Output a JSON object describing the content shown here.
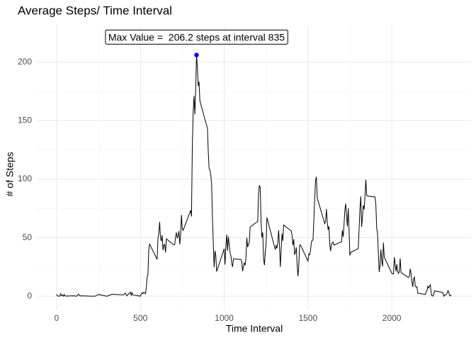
{
  "chart_data": {
    "type": "line",
    "title": "Average Steps/ Time Interval",
    "x_label": "Time Interval",
    "y_label": "# of Steps",
    "xlim": [
      -117.75,
      2472.75
    ],
    "ylim": [
      -12,
      232
    ],
    "xticks": [
      0,
      500,
      1000,
      1500,
      2000
    ],
    "yticks": [
      0,
      50,
      100,
      150,
      200
    ],
    "grid": true,
    "annotation": {
      "text": "Max Value =  206.2 steps at interval 835",
      "x": 835,
      "y": 206.2,
      "color": "#0000ff"
    },
    "x": [
      0,
      5,
      10,
      15,
      20,
      25,
      30,
      35,
      40,
      45,
      50,
      55,
      100,
      110,
      120,
      130,
      140,
      150,
      200,
      230,
      250,
      300,
      330,
      400,
      410,
      420,
      430,
      440,
      445,
      450,
      455,
      500,
      505,
      510,
      515,
      520,
      525,
      530,
      535,
      540,
      545,
      550,
      555,
      600,
      605,
      610,
      615,
      620,
      625,
      630,
      635,
      640,
      645,
      650,
      655,
      700,
      705,
      710,
      715,
      720,
      725,
      730,
      735,
      740,
      745,
      750,
      755,
      800,
      805,
      810,
      815,
      820,
      825,
      830,
      835,
      840,
      845,
      850,
      855,
      900,
      905,
      910,
      915,
      920,
      925,
      930,
      935,
      940,
      945,
      950,
      955,
      1000,
      1005,
      1010,
      1015,
      1020,
      1025,
      1030,
      1035,
      1040,
      1045,
      1050,
      1055,
      1100,
      1105,
      1110,
      1115,
      1120,
      1125,
      1130,
      1135,
      1140,
      1145,
      1150,
      1155,
      1200,
      1205,
      1210,
      1215,
      1220,
      1225,
      1230,
      1235,
      1240,
      1245,
      1250,
      1255,
      1300,
      1305,
      1310,
      1315,
      1320,
      1325,
      1330,
      1335,
      1340,
      1345,
      1350,
      1355,
      1400,
      1405,
      1410,
      1415,
      1420,
      1425,
      1430,
      1435,
      1440,
      1445,
      1450,
      1455,
      1500,
      1505,
      1510,
      1515,
      1520,
      1525,
      1530,
      1535,
      1540,
      1545,
      1550,
      1555,
      1600,
      1605,
      1610,
      1615,
      1620,
      1625,
      1630,
      1635,
      1640,
      1645,
      1650,
      1655,
      1700,
      1705,
      1710,
      1715,
      1720,
      1725,
      1730,
      1735,
      1740,
      1745,
      1750,
      1755,
      1800,
      1805,
      1810,
      1815,
      1820,
      1825,
      1830,
      1835,
      1840,
      1845,
      1850,
      1855,
      1900,
      1905,
      1910,
      1915,
      1920,
      1925,
      1930,
      1935,
      1940,
      1945,
      1950,
      1955,
      2000,
      2005,
      2010,
      2015,
      2020,
      2025,
      2030,
      2035,
      2040,
      2045,
      2050,
      2055,
      2100,
      2105,
      2110,
      2115,
      2120,
      2125,
      2130,
      2135,
      2140,
      2145,
      2150,
      2155,
      2200,
      2205,
      2210,
      2215,
      2220,
      2225,
      2230,
      2235,
      2240,
      2245,
      2250,
      2255,
      2300,
      2305,
      2310,
      2315,
      2320,
      2325,
      2330,
      2335,
      2340,
      2345,
      2350,
      2355
    ],
    "series": [
      {
        "color": "#000000",
        "values": [
          1.7,
          0.3,
          0.1,
          0.2,
          0.1,
          2.1,
          0.5,
          0.9,
          0,
          1.5,
          0.3,
          0.1,
          0.3,
          0.2,
          0,
          1.8,
          0.2,
          0.3,
          0,
          0,
          1.5,
          0,
          1.6,
          1.2,
          2.6,
          0.3,
          2.1,
          3.5,
          0.8,
          3.1,
          1.1,
          0,
          1.6,
          3,
          2.2,
          3.3,
          3,
          2.1,
          6.1,
          16,
          18.3,
          39.5,
          44.5,
          31.5,
          49.3,
          53.8,
          63.5,
          50,
          47.1,
          52.2,
          39.3,
          44,
          44.2,
          37.4,
          49,
          43.8,
          44.4,
          50.5,
          54.5,
          49.9,
          51,
          55.7,
          44.3,
          52.3,
          69.5,
          57.8,
          56.2,
          73.4,
          68.2,
          129.4,
          157.5,
          171.2,
          155.4,
          177.3,
          206.2,
          195.9,
          179.6,
          183.4,
          167,
          143.5,
          124,
          109.1,
          108.1,
          103.7,
          96,
          66.2,
          45.2,
          24.8,
          38.8,
          35,
          21.1,
          40.6,
          27,
          42.4,
          52.7,
          38.9,
          50.8,
          44.3,
          37.4,
          34.7,
          28.3,
          25.1,
          31.9,
          31.4,
          29.7,
          21.3,
          25.5,
          28.4,
          26.5,
          33.4,
          50,
          42,
          44.6,
          46,
          59.2,
          63.9,
          87.5,
          94.8,
          92.8,
          63.4,
          50.2,
          54.5,
          32.4,
          26.5,
          37.7,
          45,
          67.3,
          42.3,
          39.9,
          43.3,
          41,
          46.2,
          56.4,
          42.8,
          25.1,
          40,
          53.5,
          47.3,
          60.8,
          55.8,
          52,
          43.6,
          48.7,
          35.5,
          37.5,
          41.8,
          27.5,
          17.1,
          26.2,
          43.6,
          43.8,
          30,
          36.1,
          35.5,
          38.8,
          46,
          47.8,
          48.1,
          65.3,
          82.9,
          98.7,
          102.1,
          84,
          62.1,
          64.1,
          74.5,
          63.2,
          56.9,
          59.8,
          43.9,
          38.6,
          44.7,
          45.5,
          46.2,
          43.7,
          46.6,
          56.3,
          50.7,
          61.2,
          73.4,
          79.1,
          68.9,
          59.7,
          75.1,
          56.5,
          34.8,
          37.5,
          40.7,
          58,
          74.7,
          85.3,
          59.3,
          67.8,
          77.7,
          74.2,
          85.3,
          99.5,
          86.6,
          85.6,
          84.9,
          77.8,
          58,
          53.4,
          36.3,
          20.7,
          27.4,
          40,
          30.2,
          25.5,
          45.7,
          33.5,
          19.6,
          19,
          19.3,
          33.3,
          26.8,
          21.2,
          27.3,
          21.3,
          19.5,
          21.3,
          32.3,
          20.2,
          15.9,
          17.2,
          23.5,
          19.2,
          12.5,
          8,
          14.7,
          16.3,
          8.7,
          7.8,
          8.1,
          2.6,
          1.5,
          3.7,
          4.8,
          8.5,
          7.1,
          8.7,
          9.8,
          2.2,
          0.3,
          0.1,
          1.6,
          4.6,
          3.3,
          2.8,
          0,
          0.8,
          1,
          1.6,
          2.6,
          4.7,
          3.3,
          0.6,
          0.2,
          1.1
        ]
      }
    ]
  }
}
